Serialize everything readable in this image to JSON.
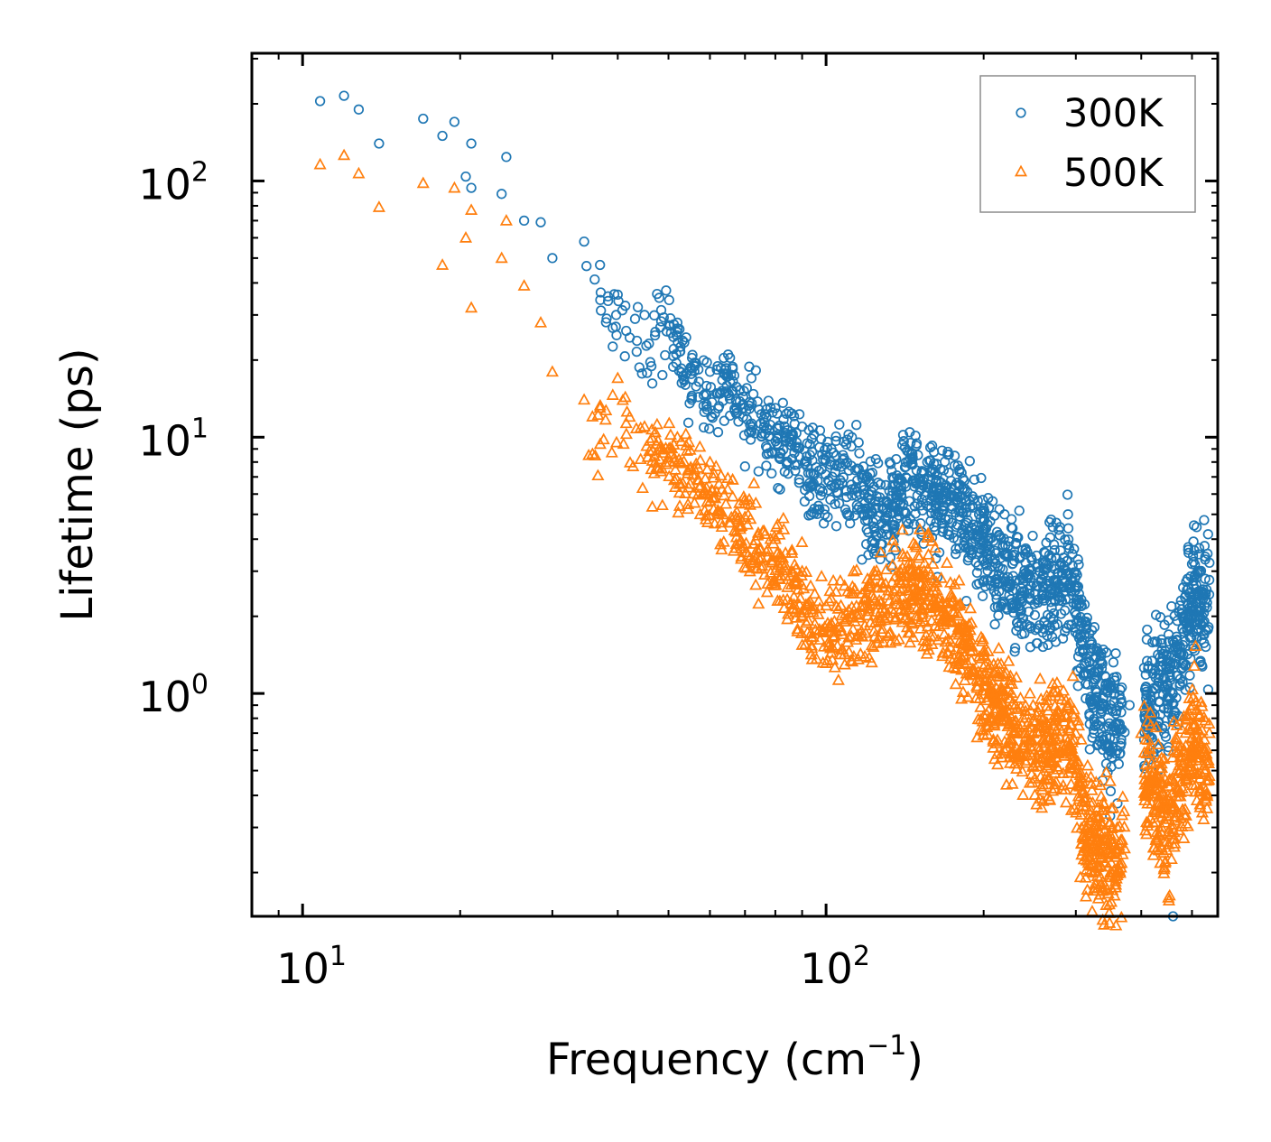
{
  "chart_data": {
    "type": "scatter",
    "xscale": "log",
    "yscale": "log",
    "xlim": [
      8,
      560
    ],
    "ylim": [
      0.135,
      315
    ],
    "xlabel": "Frequency",
    "xlabel_unit": "(cm",
    "xlabel_unit_sup": "−1",
    "xlabel_unit_close": ")",
    "ylabel": "Lifetime (ps)",
    "x_ticks": [
      {
        "value": 10,
        "base": "10",
        "exp": "1"
      },
      {
        "value": 100,
        "base": "10",
        "exp": "2"
      }
    ],
    "y_ticks": [
      {
        "value": 1,
        "base": "10",
        "exp": "0"
      },
      {
        "value": 10,
        "base": "10",
        "exp": "1"
      },
      {
        "value": 100,
        "base": "10",
        "exp": "2"
      }
    ],
    "legend": {
      "position": "top-right"
    },
    "series": [
      {
        "name": "300K",
        "label": "300K",
        "marker": "circle",
        "color": "#1f77b4",
        "anchors": [
          {
            "x": 10.8,
            "y": 205
          },
          {
            "x": 12,
            "y": 215
          },
          {
            "x": 12.8,
            "y": 190
          },
          {
            "x": 14,
            "y": 140
          },
          {
            "x": 17,
            "y": 175
          },
          {
            "x": 18.5,
            "y": 150
          },
          {
            "x": 19.5,
            "y": 170
          },
          {
            "x": 20.5,
            "y": 104
          },
          {
            "x": 21,
            "y": 140
          },
          {
            "x": 21,
            "y": 94
          },
          {
            "x": 24.5,
            "y": 124
          },
          {
            "x": 24,
            "y": 89
          },
          {
            "x": 26.5,
            "y": 70
          },
          {
            "x": 28.5,
            "y": 69
          },
          {
            "x": 34.5,
            "y": 58
          },
          {
            "x": 30,
            "y": 50
          },
          {
            "x": 37,
            "y": 47
          },
          {
            "x": 40,
            "y": 36
          },
          {
            "x": 45,
            "y": 30
          },
          {
            "x": 48,
            "y": 35
          },
          {
            "x": 52,
            "y": 28
          },
          {
            "x": 60,
            "y": 18
          },
          {
            "x": 65,
            "y": 21
          },
          {
            "x": 72,
            "y": 17
          },
          {
            "x": 80,
            "y": 13
          },
          {
            "x": 90,
            "y": 11
          },
          {
            "x": 100,
            "y": 8.5
          },
          {
            "x": 112,
            "y": 10
          },
          {
            "x": 120,
            "y": 7
          },
          {
            "x": 130,
            "y": 6.5
          },
          {
            "x": 145,
            "y": 9.5
          },
          {
            "x": 160,
            "y": 7.5
          },
          {
            "x": 180,
            "y": 7.5
          },
          {
            "x": 200,
            "y": 4.8
          },
          {
            "x": 220,
            "y": 3.5
          },
          {
            "x": 240,
            "y": 3.5
          },
          {
            "x": 260,
            "y": 3.2
          },
          {
            "x": 290,
            "y": 3.8
          },
          {
            "x": 320,
            "y": 1.5
          },
          {
            "x": 350,
            "y": 1.05
          },
          {
            "x": 380,
            "y": 0.9
          },
          {
            "x": 420,
            "y": 1.25
          },
          {
            "x": 460,
            "y": 1.6
          },
          {
            "x": 500,
            "y": 3.2
          },
          {
            "x": 530,
            "y": 2.8
          },
          {
            "x": 460,
            "y": 0.135
          }
        ]
      },
      {
        "name": "500K",
        "label": "500K",
        "marker": "triangle",
        "color": "#ff7f0e",
        "anchors": [
          {
            "x": 10.8,
            "y": 116
          },
          {
            "x": 12,
            "y": 126
          },
          {
            "x": 12.8,
            "y": 107
          },
          {
            "x": 14,
            "y": 79
          },
          {
            "x": 17,
            "y": 98
          },
          {
            "x": 18.5,
            "y": 47
          },
          {
            "x": 19.5,
            "y": 94
          },
          {
            "x": 21,
            "y": 77
          },
          {
            "x": 20.5,
            "y": 60
          },
          {
            "x": 21,
            "y": 32
          },
          {
            "x": 24.5,
            "y": 70
          },
          {
            "x": 24,
            "y": 50
          },
          {
            "x": 26.5,
            "y": 39
          },
          {
            "x": 28.5,
            "y": 28
          },
          {
            "x": 30,
            "y": 18
          },
          {
            "x": 34.5,
            "y": 14
          },
          {
            "x": 37,
            "y": 13
          },
          {
            "x": 40,
            "y": 17
          },
          {
            "x": 45,
            "y": 11
          },
          {
            "x": 52,
            "y": 10
          },
          {
            "x": 60,
            "y": 8
          },
          {
            "x": 70,
            "y": 5.5
          },
          {
            "x": 80,
            "y": 4
          },
          {
            "x": 90,
            "y": 3
          },
          {
            "x": 100,
            "y": 2.2
          },
          {
            "x": 110,
            "y": 2.5
          },
          {
            "x": 120,
            "y": 2.8
          },
          {
            "x": 140,
            "y": 3.5
          },
          {
            "x": 160,
            "y": 3.2
          },
          {
            "x": 180,
            "y": 2.2
          },
          {
            "x": 200,
            "y": 1.4
          },
          {
            "x": 230,
            "y": 0.9
          },
          {
            "x": 260,
            "y": 0.8
          },
          {
            "x": 290,
            "y": 0.9
          },
          {
            "x": 320,
            "y": 0.35
          },
          {
            "x": 360,
            "y": 0.3
          },
          {
            "x": 400,
            "y": 0.7
          },
          {
            "x": 450,
            "y": 0.4
          },
          {
            "x": 500,
            "y": 0.9
          },
          {
            "x": 540,
            "y": 0.7
          }
        ]
      }
    ]
  }
}
